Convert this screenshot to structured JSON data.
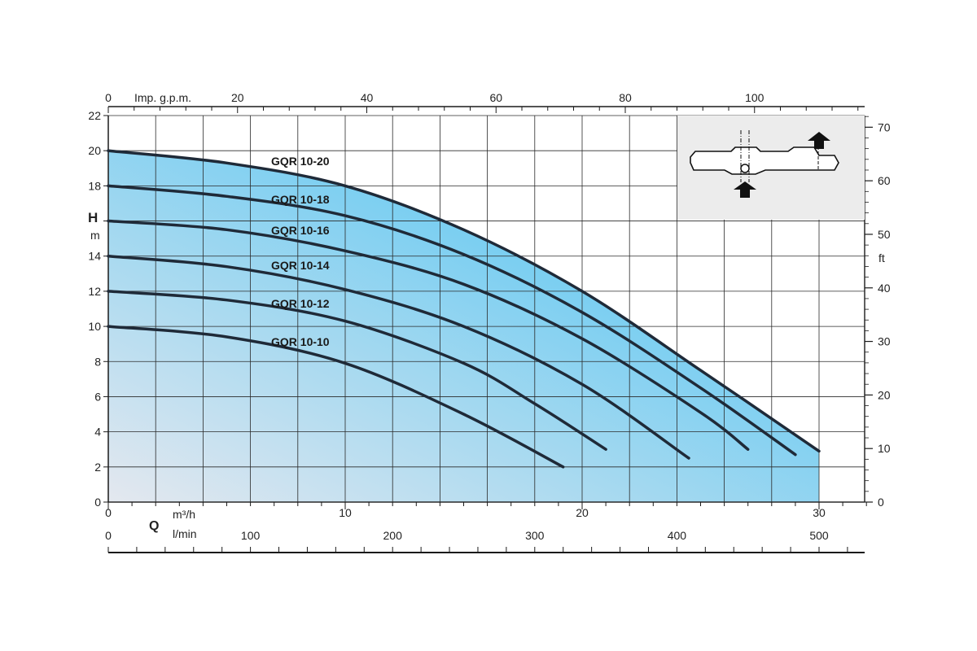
{
  "chart_data": {
    "type": "line",
    "title": "",
    "x_axes": {
      "m3h": {
        "unit_label": "m³/h",
        "ticks": [
          0,
          10,
          20,
          30
        ],
        "range": [
          0,
          32
        ]
      },
      "lmin": {
        "unit_label": "l/min",
        "ticks": [
          0,
          100,
          200,
          300,
          400,
          500
        ]
      },
      "imp_gpm": {
        "unit_label": "Imp. g.p.m.",
        "ticks": [
          0,
          20,
          40,
          60,
          80,
          100
        ]
      },
      "q_label": "Q"
    },
    "y_axes": {
      "left": {
        "title": "H",
        "unit": "m",
        "ticks": [
          0,
          2,
          4,
          6,
          8,
          10,
          12,
          14,
          16,
          18,
          20,
          22
        ],
        "tick_labels": [
          "0",
          "2",
          "4",
          "6",
          "8",
          "10",
          "12",
          "14",
          "",
          "18",
          "20",
          "22"
        ],
        "range": [
          0,
          22
        ]
      },
      "right": {
        "unit": "ft",
        "ticks": [
          0,
          10,
          20,
          30,
          40,
          50,
          60,
          70
        ]
      }
    },
    "grid": true,
    "fill_colors": {
      "light": "#e4e8ef",
      "dark": "#4fc4f2",
      "line": "#1f2a38"
    },
    "series": [
      {
        "name": "GQR 10-20",
        "x": [
          0,
          5,
          10,
          15,
          20,
          25,
          30
        ],
        "y": [
          20,
          19.3,
          18,
          15.5,
          12,
          7.5,
          2.9
        ]
      },
      {
        "name": "GQR 10-18",
        "x": [
          0,
          5,
          10,
          15,
          20,
          25,
          29
        ],
        "y": [
          18,
          17.4,
          16.3,
          14.1,
          10.8,
          6.5,
          2.7
        ]
      },
      {
        "name": "GQR 10-16",
        "x": [
          0,
          5,
          10,
          15,
          20,
          25,
          27
        ],
        "y": [
          16,
          15.5,
          14.3,
          12.4,
          9.3,
          5.1,
          3.0
        ]
      },
      {
        "name": "GQR 10-14",
        "x": [
          0,
          5,
          10,
          15,
          20,
          24.5
        ],
        "y": [
          14,
          13.4,
          12.1,
          10,
          6.7,
          2.5
        ]
      },
      {
        "name": "GQR 10-12",
        "x": [
          0,
          5,
          10,
          15,
          18,
          21
        ],
        "y": [
          12,
          11.5,
          10.3,
          7.9,
          5.6,
          3.0
        ]
      },
      {
        "name": "GQR 10-10",
        "x": [
          0,
          5,
          10,
          15,
          19.2
        ],
        "y": [
          10,
          9.4,
          7.9,
          5.0,
          2.0
        ]
      }
    ]
  }
}
